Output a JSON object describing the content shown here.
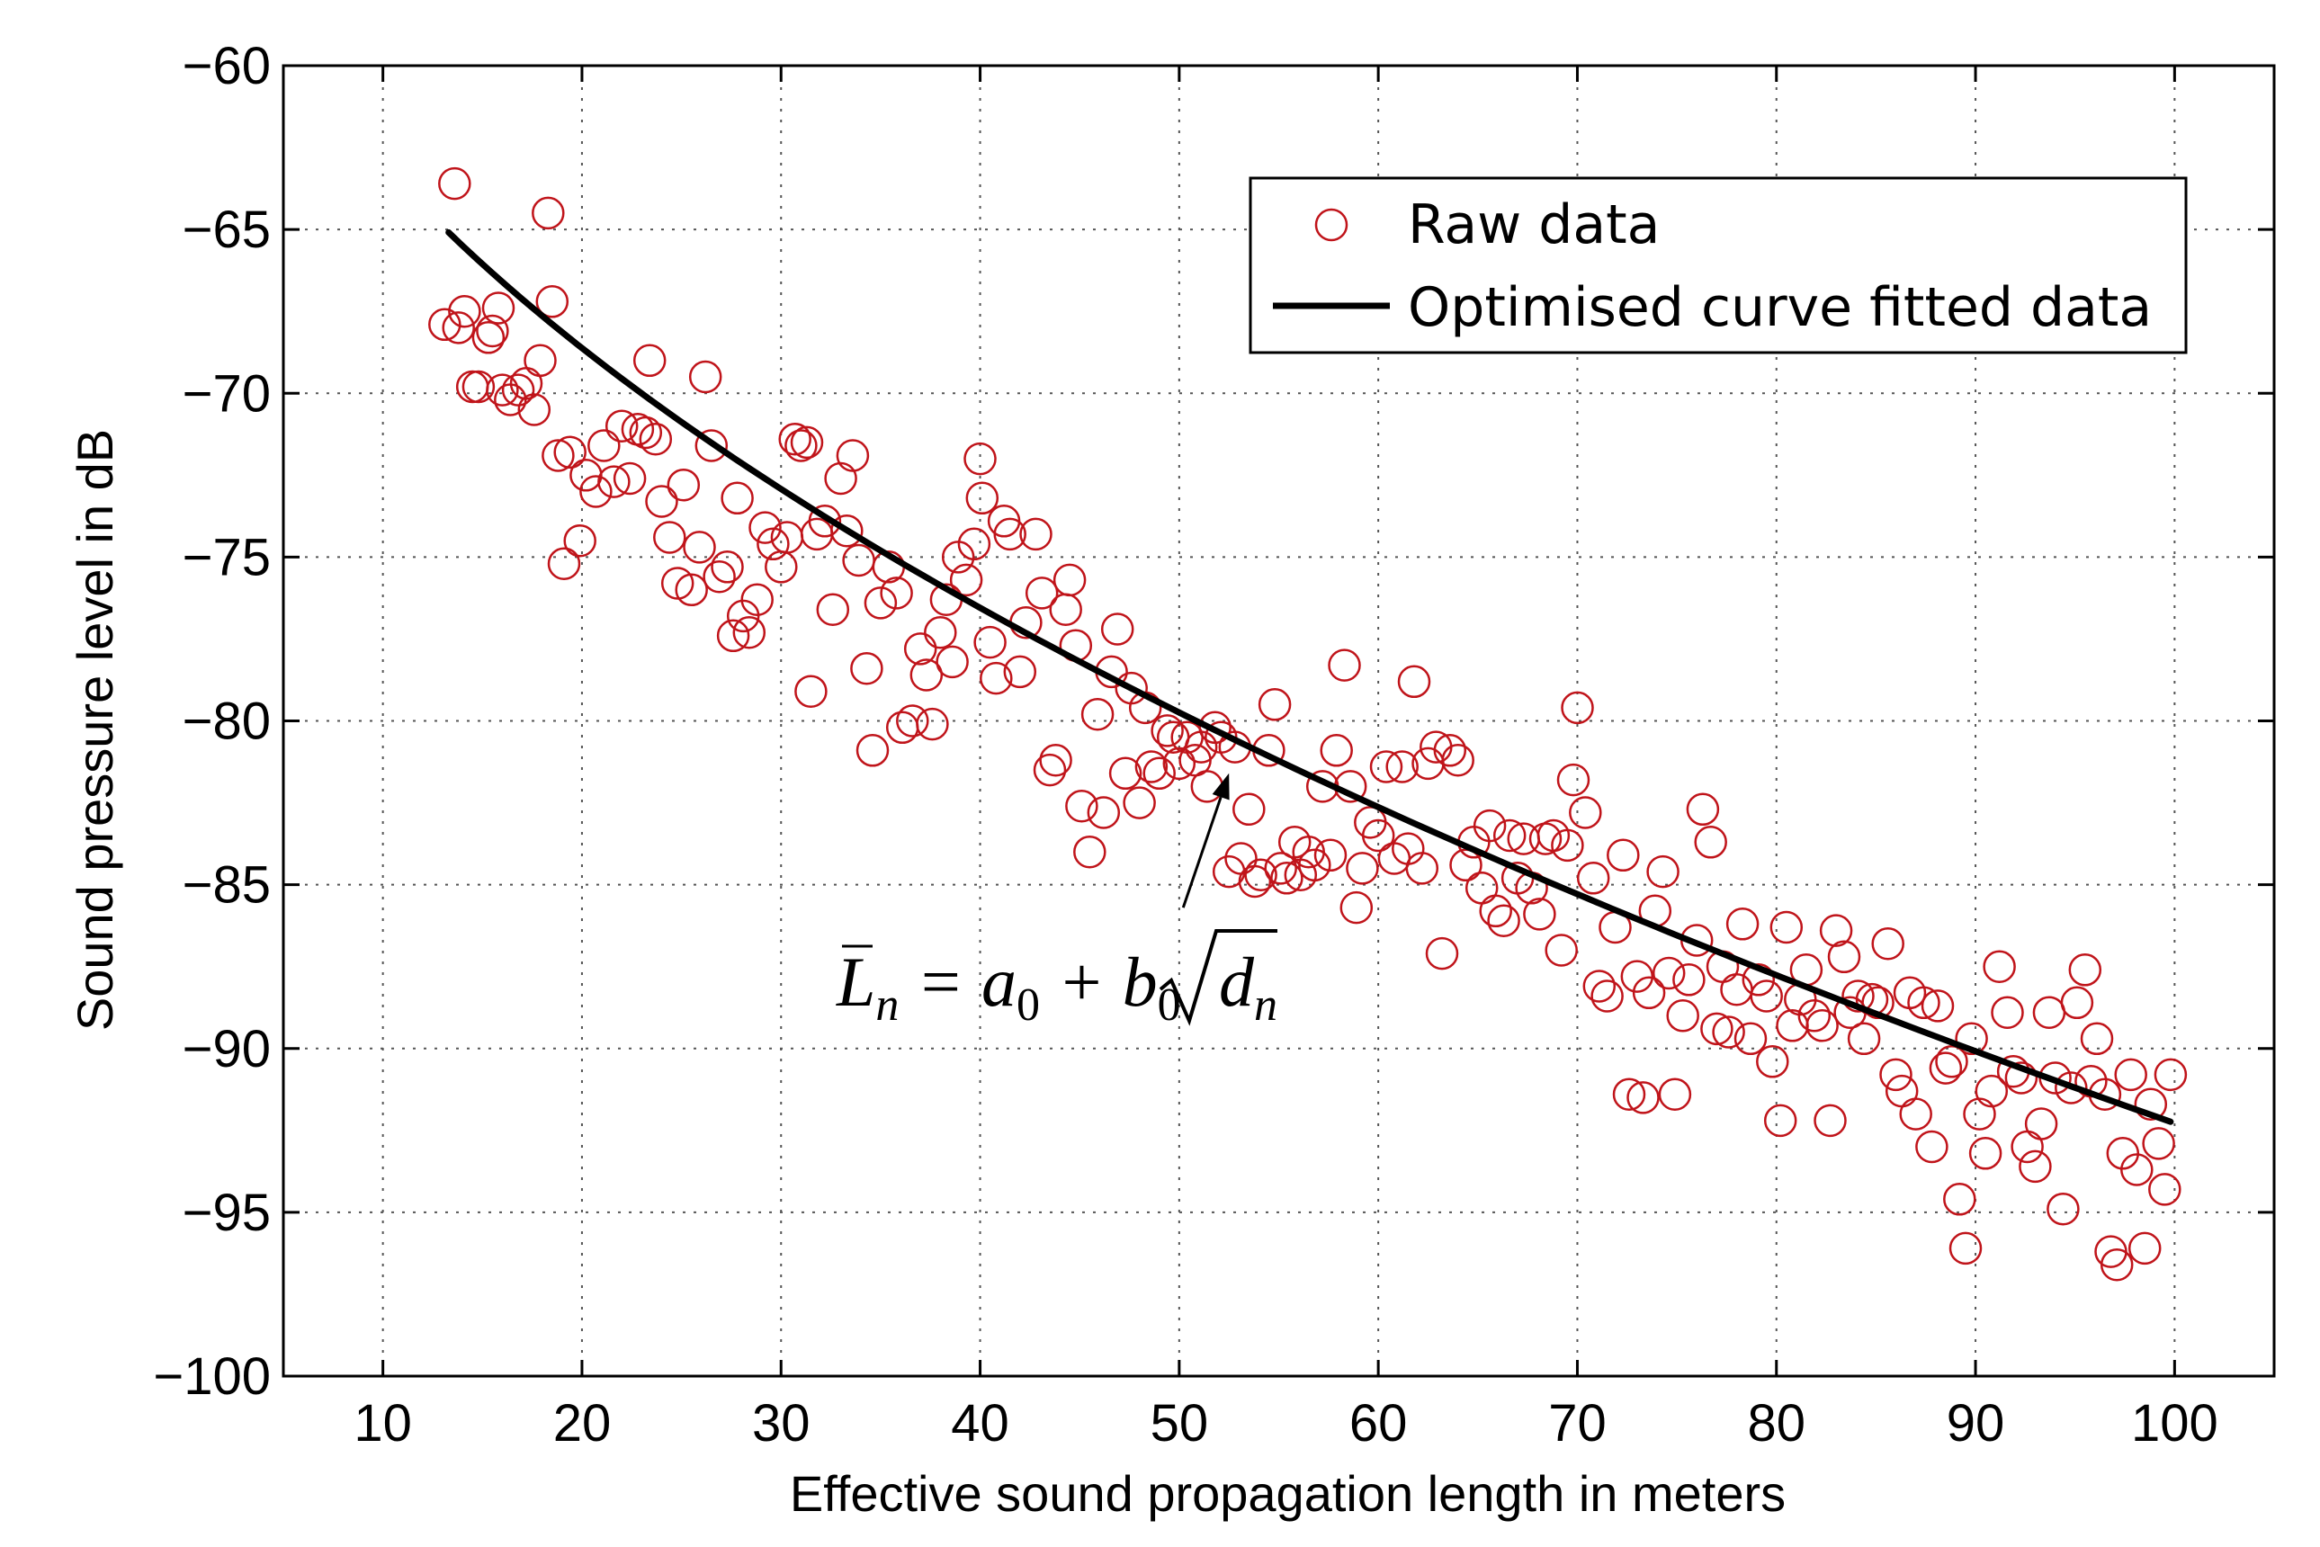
{
  "chart_data": {
    "type": "scatter",
    "xlabel": "Effective sound propagation length in meters",
    "ylabel": "Sound pressure level in dB",
    "xlim": [
      5,
      105
    ],
    "ylim": [
      -100,
      -60
    ],
    "x_ticks": [
      10,
      20,
      30,
      40,
      50,
      60,
      70,
      80,
      90,
      100
    ],
    "y_ticks": [
      -60,
      -65,
      -70,
      -75,
      -80,
      -85,
      -90,
      -95,
      -100
    ],
    "x_tick_labels": [
      "10",
      "20",
      "30",
      "40",
      "50",
      "60",
      "70",
      "80",
      "90",
      "100"
    ],
    "y_tick_labels": [
      "−60",
      "−65",
      "−70",
      "−75",
      "−80",
      "−85",
      "−90",
      "−95",
      "−100"
    ],
    "grid": true,
    "legend_position": "top-right",
    "legend": [
      {
        "label": "Raw data",
        "marker": "circle",
        "color": "#c0141a"
      },
      {
        "label": "Optimised curve fitted data",
        "marker": "line",
        "color": "#000000"
      }
    ],
    "annotation": {
      "text_parts": [
        "L",
        "n",
        " = a",
        "0",
        " + b",
        "0",
        "d",
        "n"
      ],
      "arrow_from": [
        50.2,
        -85.7
      ],
      "arrow_to": [
        52.5,
        -81.6
      ]
    },
    "series": [
      {
        "name": "Raw data",
        "color": "#c0141a",
        "points": [
          [
            13.1,
            -67.9
          ],
          [
            13.6,
            -63.6
          ],
          [
            13.8,
            -68.0
          ],
          [
            14.1,
            -67.5
          ],
          [
            14.5,
            -69.8
          ],
          [
            14.8,
            -69.8
          ],
          [
            15.3,
            -68.3
          ],
          [
            15.5,
            -68.1
          ],
          [
            15.8,
            -67.4
          ],
          [
            16.0,
            -69.9
          ],
          [
            16.4,
            -70.2
          ],
          [
            16.8,
            -69.9
          ],
          [
            17.2,
            -69.7
          ],
          [
            17.6,
            -70.5
          ],
          [
            17.9,
            -69.0
          ],
          [
            18.3,
            -64.5
          ],
          [
            18.5,
            -67.2
          ],
          [
            18.8,
            -71.9
          ],
          [
            19.1,
            -75.2
          ],
          [
            19.4,
            -71.8
          ],
          [
            19.9,
            -74.5
          ],
          [
            20.2,
            -72.5
          ],
          [
            20.7,
            -73.0
          ],
          [
            21.1,
            -71.6
          ],
          [
            21.6,
            -72.7
          ],
          [
            22.0,
            -71.0
          ],
          [
            22.4,
            -72.6
          ],
          [
            22.8,
            -71.1
          ],
          [
            23.2,
            -71.2
          ],
          [
            23.4,
            -69.0
          ],
          [
            23.7,
            -71.4
          ],
          [
            24.0,
            -73.3
          ],
          [
            24.4,
            -74.4
          ],
          [
            24.8,
            -75.8
          ],
          [
            25.1,
            -72.8
          ],
          [
            25.5,
            -76.0
          ],
          [
            25.9,
            -74.7
          ],
          [
            26.2,
            -69.5
          ],
          [
            26.5,
            -71.6
          ],
          [
            26.9,
            -75.6
          ],
          [
            27.3,
            -75.3
          ],
          [
            27.6,
            -77.4
          ],
          [
            27.8,
            -73.2
          ],
          [
            28.1,
            -76.8
          ],
          [
            28.4,
            -77.3
          ],
          [
            28.8,
            -76.3
          ],
          [
            29.2,
            -74.1
          ],
          [
            29.6,
            -74.6
          ],
          [
            30.0,
            -75.3
          ],
          [
            30.3,
            -74.4
          ],
          [
            30.7,
            -71.4
          ],
          [
            31.0,
            -71.6
          ],
          [
            31.3,
            -71.5
          ],
          [
            31.5,
            -79.1
          ],
          [
            31.8,
            -74.3
          ],
          [
            32.2,
            -73.9
          ],
          [
            32.6,
            -76.6
          ],
          [
            33.0,
            -72.6
          ],
          [
            33.3,
            -74.2
          ],
          [
            33.6,
            -71.9
          ],
          [
            33.9,
            -75.1
          ],
          [
            34.3,
            -78.4
          ],
          [
            34.6,
            -80.9
          ],
          [
            35.0,
            -76.4
          ],
          [
            35.4,
            -75.3
          ],
          [
            35.8,
            -76.1
          ],
          [
            36.1,
            -80.2
          ],
          [
            36.6,
            -80.0
          ],
          [
            37.0,
            -77.8
          ],
          [
            37.3,
            -78.6
          ],
          [
            37.6,
            -80.1
          ],
          [
            38.0,
            -77.3
          ],
          [
            38.3,
            -76.3
          ],
          [
            38.6,
            -78.2
          ],
          [
            38.9,
            -75.0
          ],
          [
            39.3,
            -75.7
          ],
          [
            39.7,
            -74.6
          ],
          [
            40.0,
            -72.0
          ],
          [
            40.1,
            -73.2
          ],
          [
            40.5,
            -77.6
          ],
          [
            40.8,
            -78.7
          ],
          [
            41.2,
            -73.9
          ],
          [
            41.5,
            -74.3
          ],
          [
            42.0,
            -78.5
          ],
          [
            42.3,
            -77.0
          ],
          [
            42.8,
            -74.3
          ],
          [
            43.1,
            -76.1
          ],
          [
            43.5,
            -81.5
          ],
          [
            43.8,
            -81.2
          ],
          [
            44.3,
            -76.6
          ],
          [
            44.5,
            -75.7
          ],
          [
            44.8,
            -77.7
          ],
          [
            45.1,
            -82.6
          ],
          [
            45.5,
            -84.0
          ],
          [
            45.9,
            -79.8
          ],
          [
            46.2,
            -82.8
          ],
          [
            46.6,
            -78.5
          ],
          [
            46.9,
            -77.2
          ],
          [
            47.3,
            -81.6
          ],
          [
            47.6,
            -79.0
          ],
          [
            48.0,
            -82.5
          ],
          [
            48.3,
            -79.6
          ],
          [
            48.6,
            -81.4
          ],
          [
            49.0,
            -81.6
          ],
          [
            49.4,
            -80.3
          ],
          [
            49.7,
            -80.5
          ],
          [
            50.0,
            -81.3
          ],
          [
            50.4,
            -80.5
          ],
          [
            50.8,
            -81.2
          ],
          [
            51.1,
            -80.8
          ],
          [
            51.4,
            -82.0
          ],
          [
            51.8,
            -80.2
          ],
          [
            52.1,
            -80.5
          ],
          [
            52.5,
            -84.6
          ],
          [
            52.8,
            -80.8
          ],
          [
            53.1,
            -84.2
          ],
          [
            53.5,
            -82.7
          ],
          [
            53.8,
            -84.9
          ],
          [
            54.1,
            -84.7
          ],
          [
            54.5,
            -80.9
          ],
          [
            54.8,
            -79.5
          ],
          [
            55.1,
            -84.5
          ],
          [
            55.4,
            -84.8
          ],
          [
            55.8,
            -83.7
          ],
          [
            56.1,
            -84.7
          ],
          [
            56.5,
            -84.0
          ],
          [
            56.8,
            -84.4
          ],
          [
            57.2,
            -82.0
          ],
          [
            57.6,
            -84.1
          ],
          [
            57.9,
            -80.9
          ],
          [
            58.3,
            -78.3
          ],
          [
            58.6,
            -82.0
          ],
          [
            58.9,
            -85.7
          ],
          [
            59.2,
            -84.5
          ],
          [
            59.6,
            -83.1
          ],
          [
            60.0,
            -83.5
          ],
          [
            60.4,
            -81.4
          ],
          [
            60.8,
            -84.2
          ],
          [
            61.2,
            -81.4
          ],
          [
            61.5,
            -83.9
          ],
          [
            61.8,
            -78.8
          ],
          [
            62.2,
            -84.5
          ],
          [
            62.5,
            -81.3
          ],
          [
            62.9,
            -80.8
          ],
          [
            63.2,
            -87.1
          ],
          [
            63.6,
            -80.9
          ],
          [
            64.0,
            -81.2
          ],
          [
            64.4,
            -84.4
          ],
          [
            64.8,
            -83.7
          ],
          [
            65.2,
            -85.1
          ],
          [
            65.6,
            -83.2
          ],
          [
            65.9,
            -85.8
          ],
          [
            66.3,
            -86.1
          ],
          [
            66.6,
            -83.5
          ],
          [
            67.0,
            -84.8
          ],
          [
            67.3,
            -83.6
          ],
          [
            67.7,
            -85.1
          ],
          [
            68.1,
            -85.9
          ],
          [
            68.4,
            -83.6
          ],
          [
            68.8,
            -83.5
          ],
          [
            69.2,
            -87.0
          ],
          [
            69.5,
            -83.8
          ],
          [
            69.8,
            -81.8
          ],
          [
            70.0,
            -79.6
          ],
          [
            70.4,
            -82.8
          ],
          [
            70.8,
            -84.8
          ],
          [
            71.1,
            -88.1
          ],
          [
            71.5,
            -88.4
          ],
          [
            71.9,
            -86.3
          ],
          [
            72.3,
            -84.1
          ],
          [
            72.6,
            -91.4
          ],
          [
            73.0,
            -87.8
          ],
          [
            73.3,
            -91.5
          ],
          [
            73.6,
            -88.3
          ],
          [
            73.9,
            -85.8
          ],
          [
            74.3,
            -84.6
          ],
          [
            74.6,
            -87.7
          ],
          [
            74.9,
            -91.4
          ],
          [
            75.3,
            -89.0
          ],
          [
            75.6,
            -87.9
          ],
          [
            76.0,
            -86.7
          ],
          [
            76.3,
            -82.7
          ],
          [
            76.7,
            -83.7
          ],
          [
            77.0,
            -89.4
          ],
          [
            77.3,
            -87.5
          ],
          [
            77.6,
            -89.5
          ],
          [
            78.0,
            -88.2
          ],
          [
            78.3,
            -86.2
          ],
          [
            78.7,
            -89.7
          ],
          [
            79.1,
            -87.9
          ],
          [
            79.5,
            -88.4
          ],
          [
            79.8,
            -90.4
          ],
          [
            80.2,
            -92.2
          ],
          [
            80.5,
            -86.3
          ],
          [
            80.8,
            -89.3
          ],
          [
            81.2,
            -88.5
          ],
          [
            81.5,
            -87.6
          ],
          [
            81.9,
            -89.0
          ],
          [
            82.3,
            -89.3
          ],
          [
            82.7,
            -92.2
          ],
          [
            83.0,
            -86.4
          ],
          [
            83.4,
            -87.2
          ],
          [
            83.7,
            -88.9
          ],
          [
            84.1,
            -88.4
          ],
          [
            84.4,
            -89.7
          ],
          [
            84.8,
            -88.5
          ],
          [
            85.1,
            -88.6
          ],
          [
            85.6,
            -86.8
          ],
          [
            86.0,
            -90.8
          ],
          [
            86.3,
            -91.3
          ],
          [
            86.7,
            -88.3
          ],
          [
            87.0,
            -92.0
          ],
          [
            87.4,
            -88.6
          ],
          [
            87.8,
            -93.0
          ],
          [
            88.1,
            -88.7
          ],
          [
            88.5,
            -90.6
          ],
          [
            88.8,
            -90.4
          ],
          [
            89.2,
            -94.6
          ],
          [
            89.5,
            -96.1
          ],
          [
            89.8,
            -89.7
          ],
          [
            90.2,
            -92.0
          ],
          [
            90.5,
            -93.2
          ],
          [
            90.8,
            -91.3
          ],
          [
            91.2,
            -87.5
          ],
          [
            91.6,
            -88.9
          ],
          [
            91.9,
            -90.7
          ],
          [
            92.3,
            -90.9
          ],
          [
            92.6,
            -93.0
          ],
          [
            93.0,
            -93.6
          ],
          [
            93.3,
            -92.3
          ],
          [
            93.7,
            -88.9
          ],
          [
            94.0,
            -90.9
          ],
          [
            94.4,
            -94.9
          ],
          [
            94.8,
            -91.2
          ],
          [
            95.1,
            -88.6
          ],
          [
            95.5,
            -87.6
          ],
          [
            95.8,
            -91.0
          ],
          [
            96.1,
            -89.7
          ],
          [
            96.5,
            -91.4
          ],
          [
            96.8,
            -96.2
          ],
          [
            97.1,
            -96.6
          ],
          [
            97.4,
            -93.2
          ],
          [
            97.8,
            -90.8
          ],
          [
            98.1,
            -93.7
          ],
          [
            98.5,
            -96.1
          ],
          [
            98.8,
            -91.7
          ],
          [
            99.2,
            -92.9
          ],
          [
            99.5,
            -94.3
          ],
          [
            99.8,
            -90.8
          ]
        ]
      },
      {
        "name": "Optimised curve fitted data",
        "color": "#000000",
        "formula": {
          "a0": -49.48,
          "b0": -4.28
        },
        "x_range": [
          13.3,
          99.8
        ]
      }
    ]
  }
}
